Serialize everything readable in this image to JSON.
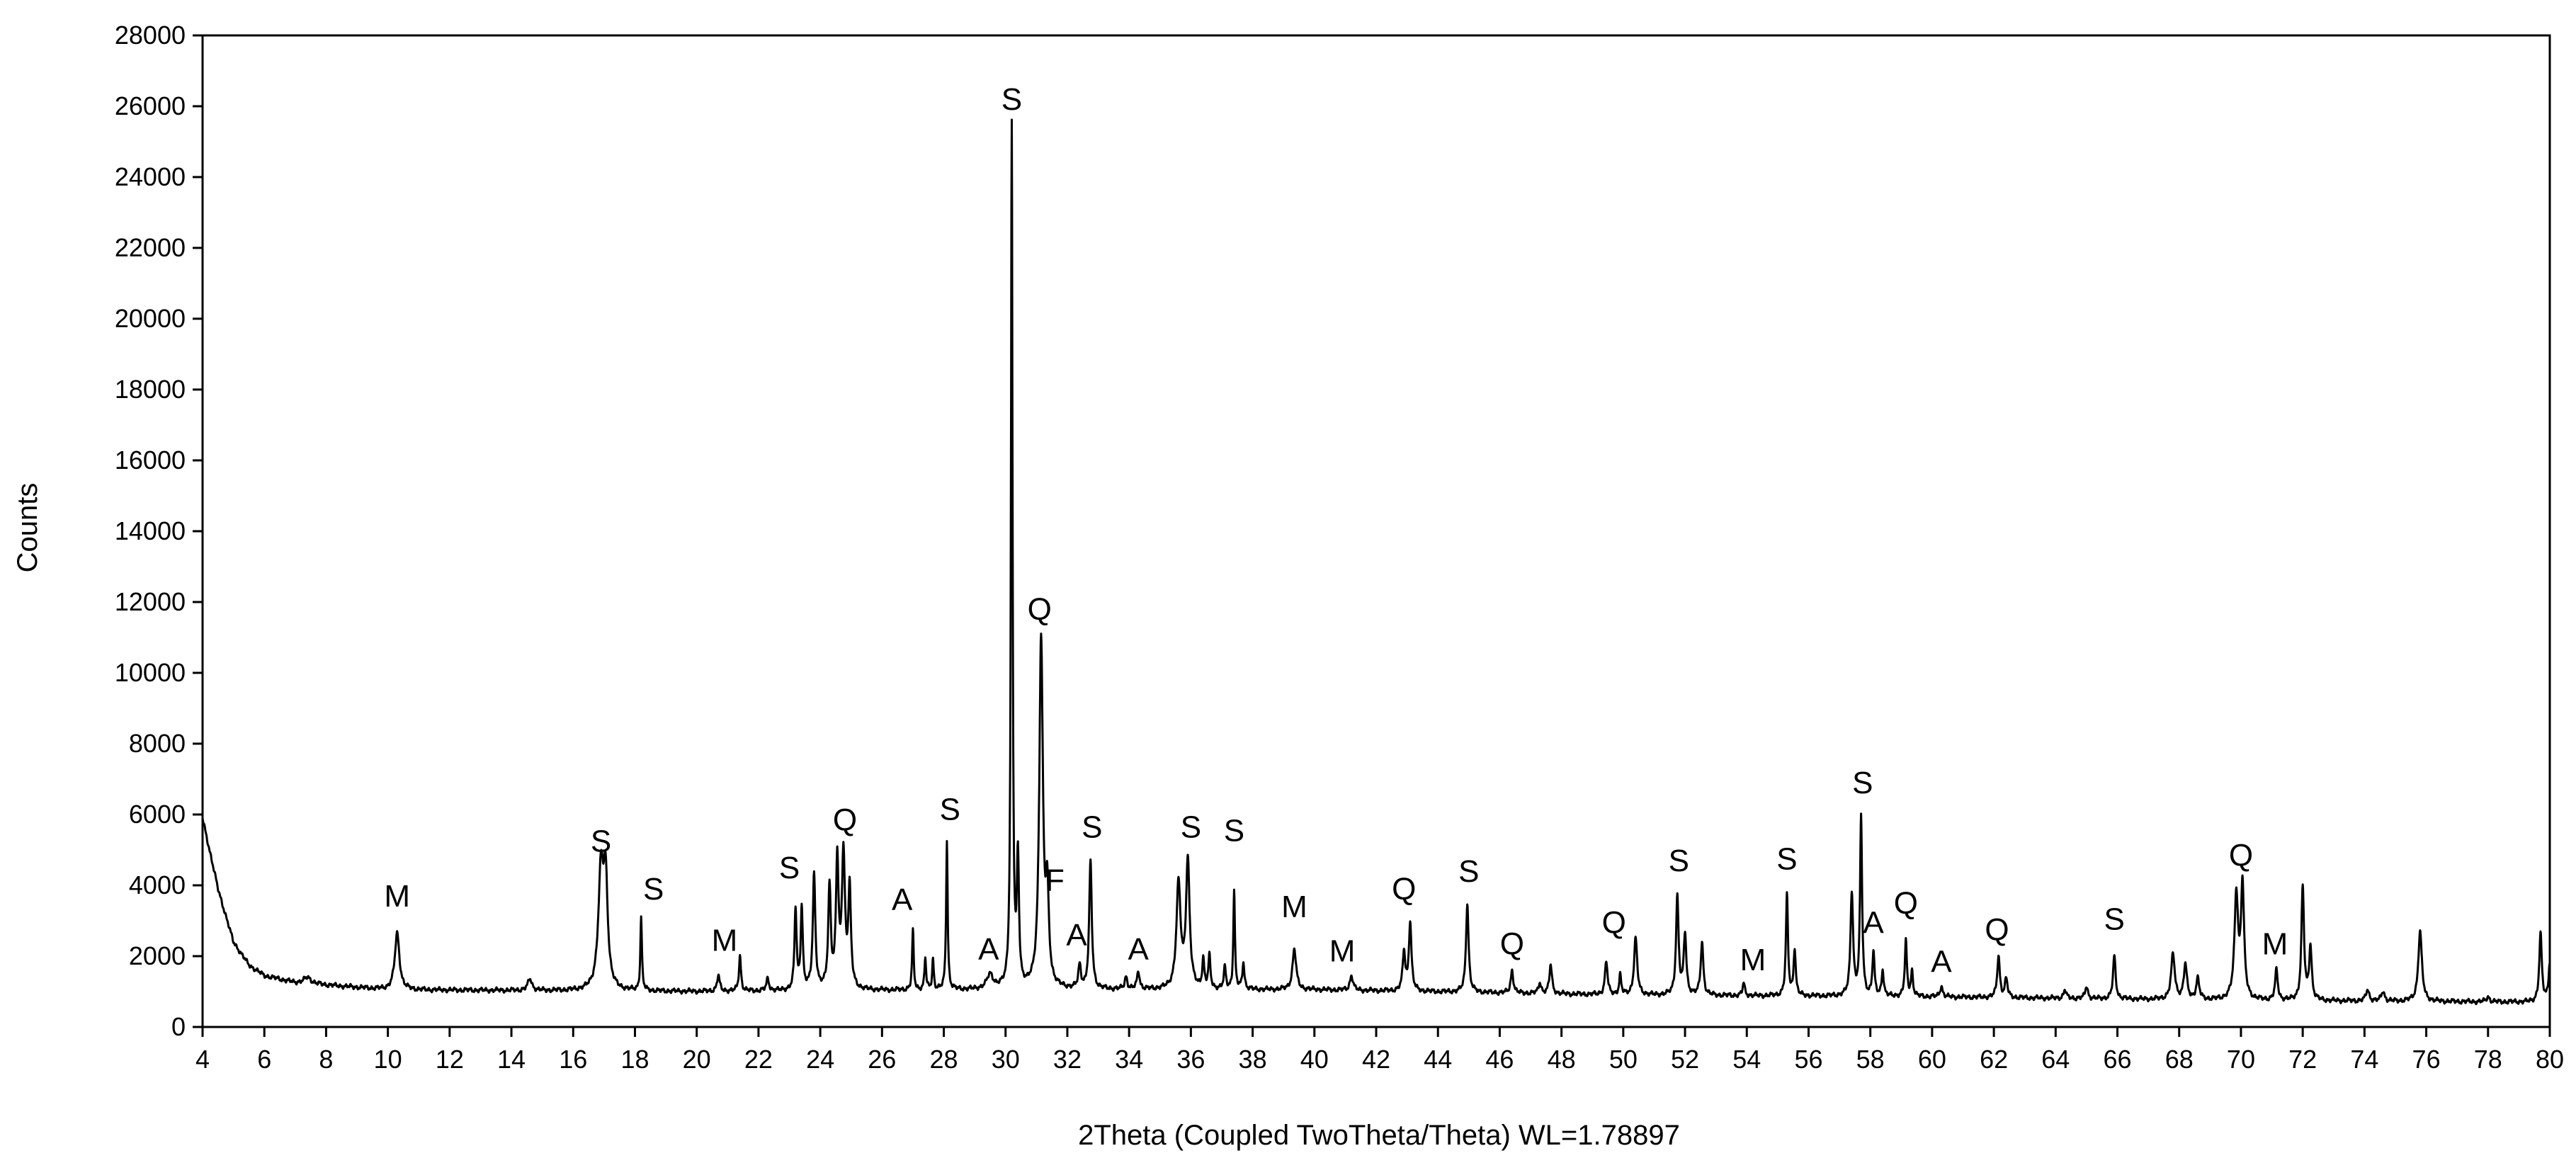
{
  "chart_data": {
    "type": "line",
    "title": "",
    "xlabel": "2Theta (Coupled TwoTheta/Theta) WL=1.78897",
    "ylabel": "Counts",
    "xlim": [
      4,
      80
    ],
    "ylim": [
      0,
      28000
    ],
    "x_ticks": [
      4,
      6,
      8,
      10,
      12,
      14,
      16,
      18,
      20,
      22,
      24,
      26,
      28,
      30,
      32,
      34,
      36,
      38,
      40,
      42,
      44,
      46,
      48,
      50,
      52,
      54,
      56,
      58,
      60,
      62,
      64,
      66,
      68,
      70,
      72,
      74,
      76,
      78,
      80
    ],
    "y_ticks": [
      0,
      2000,
      4000,
      6000,
      8000,
      10000,
      12000,
      14000,
      16000,
      18000,
      20000,
      22000,
      24000,
      26000,
      28000
    ],
    "grid": false,
    "legend": "none",
    "line_color": "#000000",
    "background": {
      "x": [
        4,
        4.5,
        5,
        5.5,
        6,
        7,
        10,
        20,
        30,
        40,
        50,
        60,
        70,
        80
      ],
      "y": [
        5900,
        3900,
        2400,
        1750,
        1450,
        1250,
        1050,
        1000,
        1050,
        1050,
        900,
        850,
        750,
        700
      ]
    },
    "peaks": [
      {
        "x": 7.4,
        "y": 1400,
        "w": 0.15
      },
      {
        "x": 10.3,
        "y": 2650,
        "w": 0.09
      },
      {
        "x": 14.6,
        "y": 1350,
        "w": 0.08
      },
      {
        "x": 16.9,
        "y": 4300,
        "w": 0.1
      },
      {
        "x": 17.05,
        "y": 3900,
        "w": 0.08
      },
      {
        "x": 18.2,
        "y": 3100,
        "w": 0.03
      },
      {
        "x": 20.7,
        "y": 1450,
        "w": 0.05
      },
      {
        "x": 21.4,
        "y": 2000,
        "w": 0.04
      },
      {
        "x": 22.3,
        "y": 1350,
        "w": 0.05
      },
      {
        "x": 23.2,
        "y": 3300,
        "w": 0.04
      },
      {
        "x": 23.4,
        "y": 3350,
        "w": 0.04
      },
      {
        "x": 23.8,
        "y": 4250,
        "w": 0.05
      },
      {
        "x": 24.3,
        "y": 3900,
        "w": 0.05
      },
      {
        "x": 24.55,
        "y": 4600,
        "w": 0.05
      },
      {
        "x": 24.75,
        "y": 4800,
        "w": 0.06
      },
      {
        "x": 24.95,
        "y": 3800,
        "w": 0.05
      },
      {
        "x": 27.0,
        "y": 2700,
        "w": 0.03
      },
      {
        "x": 27.4,
        "y": 1950,
        "w": 0.03
      },
      {
        "x": 27.65,
        "y": 1900,
        "w": 0.03
      },
      {
        "x": 28.1,
        "y": 5250,
        "w": 0.03
      },
      {
        "x": 29.5,
        "y": 1450,
        "w": 0.12
      },
      {
        "x": 30.2,
        "y": 25400,
        "w": 0.03
      },
      {
        "x": 30.4,
        "y": 4600,
        "w": 0.04
      },
      {
        "x": 31.15,
        "y": 10900,
        "w": 0.07
      },
      {
        "x": 31.35,
        "y": 3500,
        "w": 0.06
      },
      {
        "x": 32.4,
        "y": 1700,
        "w": 0.05
      },
      {
        "x": 32.75,
        "y": 4650,
        "w": 0.05
      },
      {
        "x": 33.9,
        "y": 1400,
        "w": 0.05
      },
      {
        "x": 34.3,
        "y": 1550,
        "w": 0.05
      },
      {
        "x": 35.6,
        "y": 4000,
        "w": 0.08
      },
      {
        "x": 35.9,
        "y": 4650,
        "w": 0.07
      },
      {
        "x": 36.4,
        "y": 1850,
        "w": 0.04
      },
      {
        "x": 36.6,
        "y": 1950,
        "w": 0.04
      },
      {
        "x": 37.1,
        "y": 1650,
        "w": 0.04
      },
      {
        "x": 37.4,
        "y": 3850,
        "w": 0.03
      },
      {
        "x": 37.7,
        "y": 1800,
        "w": 0.04
      },
      {
        "x": 39.35,
        "y": 2200,
        "w": 0.07
      },
      {
        "x": 41.2,
        "y": 1450,
        "w": 0.06
      },
      {
        "x": 42.9,
        "y": 2100,
        "w": 0.05
      },
      {
        "x": 43.1,
        "y": 2950,
        "w": 0.05
      },
      {
        "x": 44.95,
        "y": 3500,
        "w": 0.05
      },
      {
        "x": 46.4,
        "y": 1600,
        "w": 0.05
      },
      {
        "x": 47.3,
        "y": 1250,
        "w": 0.05
      },
      {
        "x": 47.65,
        "y": 1750,
        "w": 0.05
      },
      {
        "x": 49.45,
        "y": 1850,
        "w": 0.05
      },
      {
        "x": 49.9,
        "y": 1450,
        "w": 0.04
      },
      {
        "x": 50.4,
        "y": 2500,
        "w": 0.06
      },
      {
        "x": 51.75,
        "y": 3650,
        "w": 0.05
      },
      {
        "x": 52.0,
        "y": 2600,
        "w": 0.05
      },
      {
        "x": 52.55,
        "y": 2400,
        "w": 0.05
      },
      {
        "x": 53.9,
        "y": 1250,
        "w": 0.04
      },
      {
        "x": 55.3,
        "y": 3700,
        "w": 0.04
      },
      {
        "x": 55.55,
        "y": 2200,
        "w": 0.04
      },
      {
        "x": 57.4,
        "y": 3800,
        "w": 0.05
      },
      {
        "x": 57.7,
        "y": 5900,
        "w": 0.04
      },
      {
        "x": 58.1,
        "y": 2100,
        "w": 0.04
      },
      {
        "x": 58.4,
        "y": 1600,
        "w": 0.04
      },
      {
        "x": 59.15,
        "y": 2400,
        "w": 0.04
      },
      {
        "x": 59.35,
        "y": 1550,
        "w": 0.04
      },
      {
        "x": 60.3,
        "y": 1150,
        "w": 0.05
      },
      {
        "x": 62.15,
        "y": 2000,
        "w": 0.05
      },
      {
        "x": 62.4,
        "y": 1350,
        "w": 0.05
      },
      {
        "x": 64.3,
        "y": 1050,
        "w": 0.05
      },
      {
        "x": 65.0,
        "y": 1150,
        "w": 0.05
      },
      {
        "x": 65.9,
        "y": 2000,
        "w": 0.05
      },
      {
        "x": 67.8,
        "y": 2050,
        "w": 0.07
      },
      {
        "x": 68.2,
        "y": 1750,
        "w": 0.06
      },
      {
        "x": 68.6,
        "y": 1350,
        "w": 0.06
      },
      {
        "x": 69.85,
        "y": 3700,
        "w": 0.07
      },
      {
        "x": 70.05,
        "y": 3950,
        "w": 0.06
      },
      {
        "x": 71.15,
        "y": 1600,
        "w": 0.05
      },
      {
        "x": 72.0,
        "y": 3950,
        "w": 0.05
      },
      {
        "x": 72.25,
        "y": 2250,
        "w": 0.05
      },
      {
        "x": 74.1,
        "y": 1050,
        "w": 0.06
      },
      {
        "x": 74.6,
        "y": 1000,
        "w": 0.06
      },
      {
        "x": 75.8,
        "y": 2700,
        "w": 0.07
      },
      {
        "x": 78.0,
        "y": 850,
        "w": 0.06
      },
      {
        "x": 79.7,
        "y": 2600,
        "w": 0.05
      },
      {
        "x": 80.0,
        "y": 1800,
        "w": 0.05
      }
    ],
    "annotations": [
      {
        "text": "M",
        "x": 10.3,
        "y": 3400
      },
      {
        "text": "S",
        "x": 16.9,
        "y": 4950
      },
      {
        "text": "S",
        "x": 18.6,
        "y": 3600
      },
      {
        "text": "M",
        "x": 20.9,
        "y": 2150
      },
      {
        "text": "S",
        "x": 23.0,
        "y": 4200
      },
      {
        "text": "Q",
        "x": 24.8,
        "y": 5550
      },
      {
        "text": "A",
        "x": 26.65,
        "y": 3300
      },
      {
        "text": "S",
        "x": 28.2,
        "y": 5850
      },
      {
        "text": "A",
        "x": 29.45,
        "y": 1900
      },
      {
        "text": "S",
        "x": 30.2,
        "y": 25900
      },
      {
        "text": "Q",
        "x": 31.1,
        "y": 11500
      },
      {
        "text": "F",
        "x": 31.6,
        "y": 3850
      },
      {
        "text": "A",
        "x": 32.3,
        "y": 2300
      },
      {
        "text": "S",
        "x": 32.8,
        "y": 5350
      },
      {
        "text": "A",
        "x": 34.3,
        "y": 1900
      },
      {
        "text": "S",
        "x": 36.0,
        "y": 5350
      },
      {
        "text": "S",
        "x": 37.4,
        "y": 5250
      },
      {
        "text": "M",
        "x": 39.35,
        "y": 3100
      },
      {
        "text": "M",
        "x": 40.9,
        "y": 1850
      },
      {
        "text": "Q",
        "x": 42.9,
        "y": 3600
      },
      {
        "text": "S",
        "x": 45.0,
        "y": 4100
      },
      {
        "text": "Q",
        "x": 46.4,
        "y": 2050
      },
      {
        "text": "Q",
        "x": 49.7,
        "y": 2650
      },
      {
        "text": "S",
        "x": 51.8,
        "y": 4400
      },
      {
        "text": "M",
        "x": 54.2,
        "y": 1600
      },
      {
        "text": "S",
        "x": 55.3,
        "y": 4450
      },
      {
        "text": "S",
        "x": 57.75,
        "y": 6600
      },
      {
        "text": "Q",
        "x": 59.15,
        "y": 3200
      },
      {
        "text": "A",
        "x": 58.1,
        "y": 2650
      },
      {
        "text": "A",
        "x": 60.3,
        "y": 1550
      },
      {
        "text": "Q",
        "x": 62.1,
        "y": 2450
      },
      {
        "text": "S",
        "x": 65.9,
        "y": 2750
      },
      {
        "text": "Q",
        "x": 70.0,
        "y": 4550
      },
      {
        "text": "M",
        "x": 71.1,
        "y": 2050
      }
    ]
  }
}
